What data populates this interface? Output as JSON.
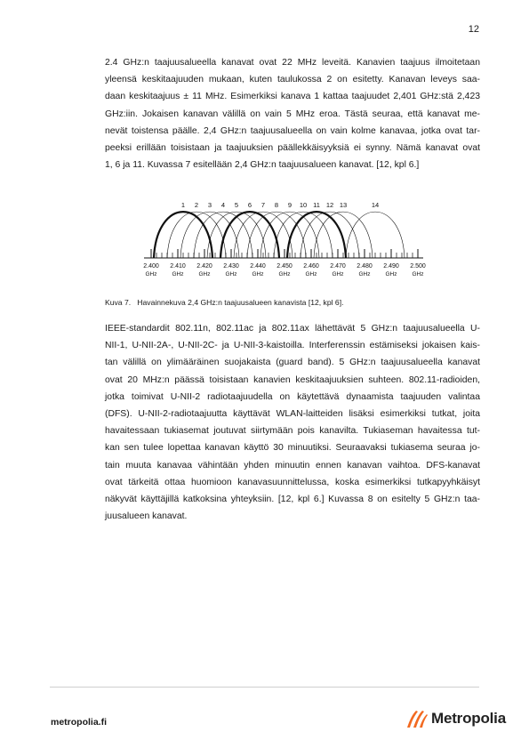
{
  "page_number": "12",
  "paragraph1": [
    "2.4 GHz:n taajuusalueella kanavat ovat 22 MHz leveitä. Kanavien taajuus ilmoitetaan",
    "yleensä keskitaajuuden mukaan, kuten taulukossa 2 on esitetty. Kanavan leveys saa-",
    "daan keskitaajuus ± 11 MHz. Esimerkiksi kanava 1 kattaa taajuudet 2,401 GHz:stä 2,423",
    "GHz:iin. Jokaisen kanavan välillä on vain 5 MHz eroa. Tästä seuraa, että kanavat me-",
    "nevät toistensa päälle. 2,4 GHz:n taajuusalueella on vain kolme kanavaa, jotka ovat tar-",
    "peeksi erillään toisistaan ja taajuuksien päällekkäisyyksiä ei synny. Nämä kanavat ovat",
    "1, 6 ja 11. Kuvassa 7 esitellään 2,4 GHz:n taajuusalueen kanavat. [12, kpl 6.]"
  ],
  "figure": {
    "channel_labels": [
      "1",
      "2",
      "3",
      "4",
      "5",
      "6",
      "7",
      "8",
      "9",
      "10",
      "11",
      "12",
      "13",
      "14"
    ],
    "frequency_labels": [
      "2.400",
      "2.410",
      "2.420",
      "2.430",
      "2.440",
      "2.450",
      "2.460",
      "2.470",
      "2.480",
      "2.490",
      "2.500"
    ],
    "unit_label": "GHz"
  },
  "caption": "Kuva 7.   Havainnekuva 2,4 GHz:n taajuusalueen kanavista [12, kpl 6].",
  "paragraph2": [
    "IEEE-standardit 802.11n, 802.11ac ja 802.11ax lähettävät 5 GHz:n taajuusalueella U-",
    "NII-1, U-NII-2A-, U-NII-2C- ja U-NII-3-kaistoilla. Interferenssin estämiseksi jokaisen kais-",
    "tan välillä on ylimääräinen suojakaista (guard band).  5 GHz:n taajuusalueella kanavat",
    "ovat 20 MHz:n päässä toisistaan kanavien keskitaajuuksien suhteen. 802.11-radioiden,",
    "jotka toimivat U-NII-2 radiotaajuudella on käytettävä dynaamista taajuuden valintaa",
    "(DFS). U-NII-2-radiotaajuutta käyttävät WLAN-laitteiden lisäksi esimerkiksi tutkat, joita",
    "havaitessaan tukiasemat joutuvat siirtymään pois kanavilta. Tukiaseman havaitessa tut-",
    "kan sen tulee lopettaa kanavan käyttö 30 minuutiksi. Seuraavaksi tukiasema seuraa jo-",
    "tain muuta kanavaa vähintään yhden minuutin ennen kanavan vaihtoa. DFS-kanavat",
    "ovat tärkeitä ottaa huomioon kanavasuunnittelussa, koska esimerkiksi tutkapyyhkäisyt",
    "näkyvät käyttäjillä katkoksina yhteyksiin. [12, kpl 6.] Kuvassa 8 on esitelty 5 GHz:n taa-",
    "juusalueen kanavat."
  ],
  "footer": {
    "url": "metropolia.fi",
    "logo_text": "Metropolia"
  },
  "colors": {
    "logo_orange": "#f26a21",
    "logo_dark": "#222222"
  }
}
